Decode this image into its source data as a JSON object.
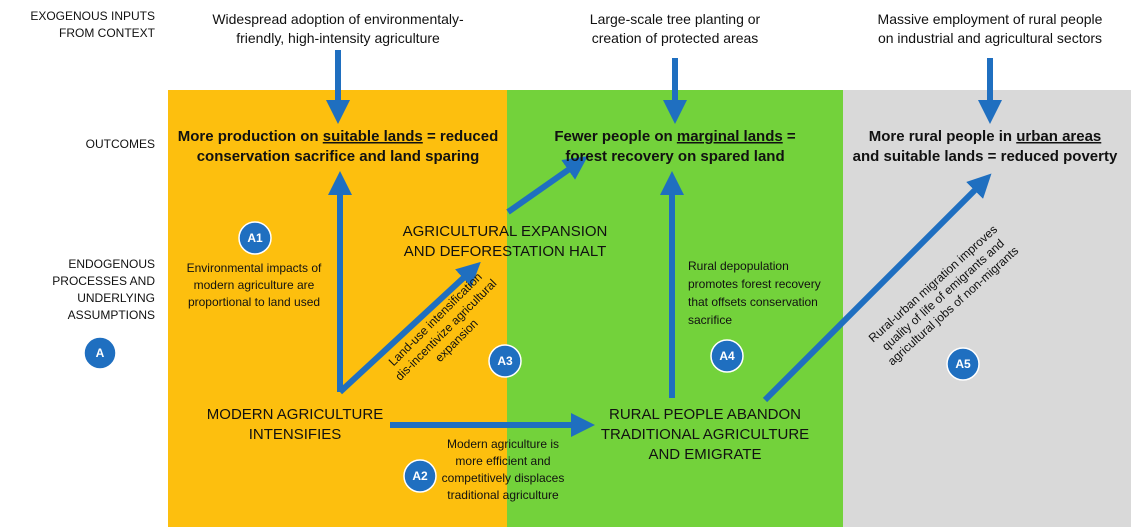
{
  "row_labels": {
    "exogenous": [
      "EXOGENOUS INPUTS",
      "FROM CONTEXT"
    ],
    "outcomes": [
      "OUTCOMES"
    ],
    "endogenous": [
      "ENDOGENOUS",
      "PROCESSES AND",
      "UNDERLYING",
      "ASSUMPTIONS"
    ]
  },
  "exogenous_inputs": [
    [
      "Widespread adoption of environmentaly-",
      "friendly, high-intensity agriculture"
    ],
    [
      "Large-scale tree planting or",
      "creation of protected areas"
    ],
    [
      "Massive employment of rural people",
      "on industrial and agricultural sectors"
    ]
  ],
  "outcomes": [
    [
      [
        {
          "text": "More production on "
        },
        {
          "text": "suitable lands",
          "underline": true
        },
        {
          "text": " = reduced"
        }
      ],
      [
        {
          "text": "conservation sacrifice and land sparing"
        }
      ]
    ],
    [
      [
        {
          "text": "Fewer people on "
        },
        {
          "text": "marginal lands",
          "underline": true
        },
        {
          "text": " ="
        }
      ],
      [
        {
          "text": "forest recovery on spared land"
        }
      ]
    ],
    [
      [
        {
          "text": "More rural people in "
        },
        {
          "text": "urban areas",
          "underline": true
        }
      ],
      [
        {
          "text": "and suitable lands = reduced poverty"
        }
      ]
    ]
  ],
  "nodes": [
    [
      "AGRICULTURAL EXPANSION",
      "AND DEFORESTATION HALT"
    ],
    [
      "MODERN AGRICULTURE",
      "INTENSIFIES"
    ],
    [
      "RURAL PEOPLE ABANDON",
      "TRADITIONAL AGRICULTURE",
      "AND EMIGRATE"
    ]
  ],
  "assumptions": [
    {
      "badge": "A1",
      "lines": [
        "Environmental impacts of",
        "modern agriculture are",
        "proportional to land used"
      ]
    },
    {
      "badge": "A2",
      "lines": [
        "Modern agriculture is",
        "more efficient and",
        "competitively displaces",
        "traditional agriculture"
      ]
    },
    {
      "badge": "A3",
      "lines": [
        "Land-use intensification",
        "dis-incentivize agricultural",
        "expansion"
      ]
    },
    {
      "badge": "A4",
      "lines": [
        "Rural depopulation",
        "promotes forest recovery",
        "that offsets conservation",
        "sacrifice"
      ]
    },
    {
      "badge": "A5",
      "lines": [
        "Rural-urban migration improves",
        "quality of life of emigrants and",
        "agricultural jobs of non-migrants"
      ]
    }
  ],
  "main_badge": "A"
}
